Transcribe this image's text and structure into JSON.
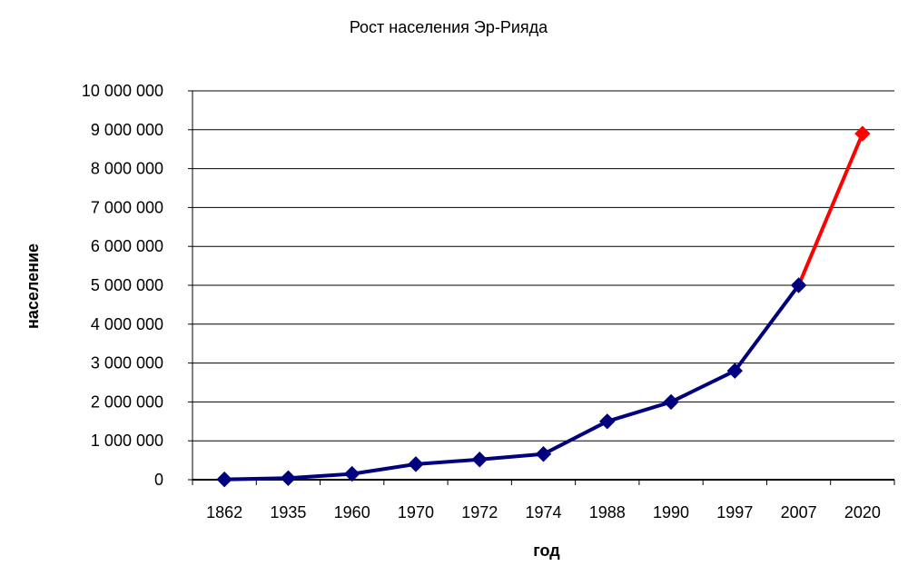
{
  "chart_data": {
    "type": "line",
    "title": "Рост населения Эр-Рияда",
    "xlabel": "год",
    "ylabel": "население",
    "categories": [
      "1862",
      "1935",
      "1960",
      "1970",
      "1972",
      "1974",
      "1988",
      "1990",
      "1997",
      "2007",
      "2020"
    ],
    "ylim": [
      0,
      10000000
    ],
    "yticks": [
      "0",
      "1 000 000",
      "2 000 000",
      "3 000 000",
      "4 000 000",
      "5 000 000",
      "6 000 000",
      "7 000 000",
      "8 000 000",
      "9 000 000",
      "10 000 000"
    ],
    "grid": true,
    "series": [
      {
        "color": "#00007F",
        "values": [
          8000,
          40000,
          150000,
          400000,
          520000,
          660000,
          1500000,
          2000000,
          2800000,
          5000000,
          null
        ]
      },
      {
        "color": "#FF0000",
        "values": [
          null,
          null,
          null,
          null,
          null,
          null,
          null,
          null,
          null,
          5000000,
          8900000
        ]
      }
    ]
  }
}
